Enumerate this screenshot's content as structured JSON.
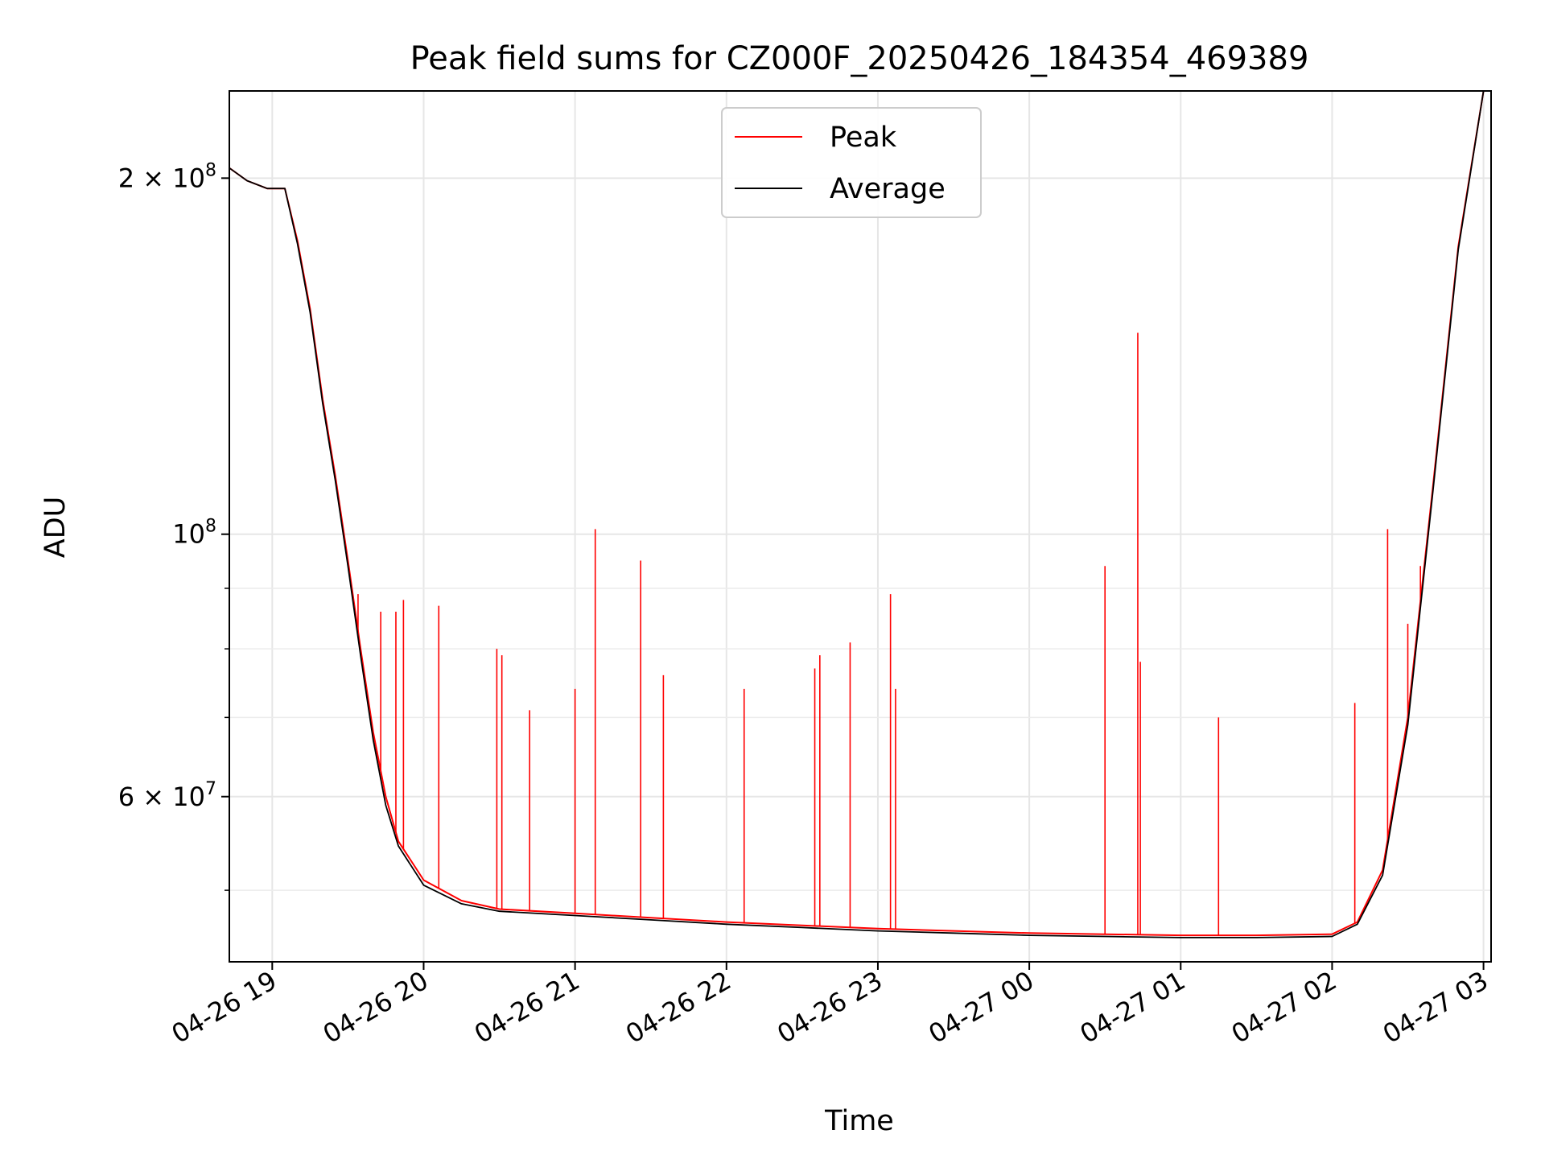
{
  "chart_data": {
    "type": "line",
    "title": "Peak field sums for CZ000F_20250426_184354_469389",
    "xlabel": "Time",
    "ylabel": "ADU",
    "x_ticks": [
      "04-26 19",
      "04-26 20",
      "04-26 21",
      "04-26 22",
      "04-26 23",
      "04-27 00",
      "04-27 01",
      "04-27 02",
      "04-27 03"
    ],
    "y_scale": "log",
    "y_tick_labels": [
      "2 × 10^8",
      "10^8",
      "6 × 10^7"
    ],
    "y_tick_values": [
      200000000,
      100000000,
      60000000
    ],
    "xlim": [
      "2025-04-26 18:43",
      "2025-04-27 03:03"
    ],
    "ylim": [
      43500000,
      237000000
    ],
    "grid": true,
    "legend_position": "top-center",
    "series": [
      {
        "name": "Peak",
        "color": "#ff0000",
        "points": [
          [
            "2025-04-26 18:43",
            204000000
          ],
          [
            "2025-04-26 18:50",
            199000000
          ],
          [
            "2025-04-26 18:58",
            196000000
          ],
          [
            "2025-04-26 19:05",
            196000000
          ],
          [
            "2025-04-26 19:10",
            177000000
          ],
          [
            "2025-04-26 19:15",
            155000000
          ],
          [
            "2025-04-26 19:20",
            130000000
          ],
          [
            "2025-04-26 19:25",
            112000000
          ],
          [
            "2025-04-26 19:30",
            95000000
          ],
          [
            "2025-04-26 19:35",
            80000000
          ],
          [
            "2025-04-26 19:40",
            68000000
          ],
          [
            "2025-04-26 19:45",
            60000000
          ],
          [
            "2025-04-26 19:50",
            55000000
          ],
          [
            "2025-04-26 20:00",
            51000000
          ],
          [
            "2025-04-26 20:15",
            49000000
          ],
          [
            "2025-04-26 20:30",
            48200000
          ],
          [
            "2025-04-26 21:00",
            47800000
          ],
          [
            "2025-04-26 21:30",
            47400000
          ],
          [
            "2025-04-26 22:00",
            47000000
          ],
          [
            "2025-04-26 22:30",
            46700000
          ],
          [
            "2025-04-26 23:00",
            46400000
          ],
          [
            "2025-04-26 23:30",
            46200000
          ],
          [
            "2025-04-27 00:00",
            46000000
          ],
          [
            "2025-04-27 00:30",
            45900000
          ],
          [
            "2025-04-27 01:00",
            45800000
          ],
          [
            "2025-04-27 01:30",
            45800000
          ],
          [
            "2025-04-27 02:00",
            45900000
          ],
          [
            "2025-04-27 02:10",
            47000000
          ],
          [
            "2025-04-27 02:20",
            52000000
          ],
          [
            "2025-04-27 02:30",
            70000000
          ],
          [
            "2025-04-27 02:40",
            110000000
          ],
          [
            "2025-04-27 02:50",
            175000000
          ],
          [
            "2025-04-27 03:00",
            237000000
          ]
        ]
      },
      {
        "name": "Average",
        "color": "#000000",
        "points": [
          [
            "2025-04-26 18:43",
            204000000
          ],
          [
            "2025-04-26 18:50",
            199000000
          ],
          [
            "2025-04-26 18:58",
            196000000
          ],
          [
            "2025-04-26 19:05",
            196000000
          ],
          [
            "2025-04-26 19:10",
            176000000
          ],
          [
            "2025-04-26 19:15",
            154000000
          ],
          [
            "2025-04-26 19:20",
            129000000
          ],
          [
            "2025-04-26 19:25",
            111000000
          ],
          [
            "2025-04-26 19:30",
            94000000
          ],
          [
            "2025-04-26 19:35",
            79000000
          ],
          [
            "2025-04-26 19:40",
            67000000
          ],
          [
            "2025-04-26 19:45",
            59000000
          ],
          [
            "2025-04-26 19:50",
            54500000
          ],
          [
            "2025-04-26 20:00",
            50500000
          ],
          [
            "2025-04-26 20:15",
            48700000
          ],
          [
            "2025-04-26 20:30",
            48000000
          ],
          [
            "2025-04-26 21:00",
            47600000
          ],
          [
            "2025-04-26 21:30",
            47200000
          ],
          [
            "2025-04-26 22:00",
            46800000
          ],
          [
            "2025-04-26 22:30",
            46500000
          ],
          [
            "2025-04-26 23:00",
            46200000
          ],
          [
            "2025-04-26 23:30",
            46000000
          ],
          [
            "2025-04-27 00:00",
            45800000
          ],
          [
            "2025-04-27 00:30",
            45700000
          ],
          [
            "2025-04-27 01:00",
            45600000
          ],
          [
            "2025-04-27 01:30",
            45600000
          ],
          [
            "2025-04-27 02:00",
            45700000
          ],
          [
            "2025-04-27 02:10",
            46800000
          ],
          [
            "2025-04-27 02:20",
            51500000
          ],
          [
            "2025-04-27 02:30",
            69000000
          ],
          [
            "2025-04-27 02:40",
            109000000
          ],
          [
            "2025-04-27 02:50",
            174000000
          ],
          [
            "2025-04-27 03:00",
            237000000
          ]
        ]
      }
    ],
    "peak_spikes": [
      [
        "2025-04-26 19:34",
        89000000
      ],
      [
        "2025-04-26 19:43",
        86000000
      ],
      [
        "2025-04-26 19:49",
        86000000
      ],
      [
        "2025-04-26 19:52",
        88000000
      ],
      [
        "2025-04-26 20:06",
        87000000
      ],
      [
        "2025-04-26 20:29",
        80000000
      ],
      [
        "2025-04-26 20:31",
        79000000
      ],
      [
        "2025-04-26 20:42",
        71000000
      ],
      [
        "2025-04-26 21:00",
        74000000
      ],
      [
        "2025-04-26 21:08",
        101000000
      ],
      [
        "2025-04-26 21:26",
        95000000
      ],
      [
        "2025-04-26 21:35",
        76000000
      ],
      [
        "2025-04-26 22:07",
        74000000
      ],
      [
        "2025-04-26 22:35",
        77000000
      ],
      [
        "2025-04-26 22:37",
        79000000
      ],
      [
        "2025-04-26 22:49",
        81000000
      ],
      [
        "2025-04-26 23:05",
        89000000
      ],
      [
        "2025-04-26 23:07",
        74000000
      ],
      [
        "2025-04-27 00:30",
        94000000
      ],
      [
        "2025-04-27 00:43",
        148000000
      ],
      [
        "2025-04-27 00:44",
        78000000
      ],
      [
        "2025-04-27 01:15",
        70000000
      ],
      [
        "2025-04-27 02:09",
        72000000
      ],
      [
        "2025-04-27 02:22",
        101000000
      ],
      [
        "2025-04-27 02:30",
        84000000
      ],
      [
        "2025-04-27 02:35",
        94000000
      ]
    ]
  }
}
